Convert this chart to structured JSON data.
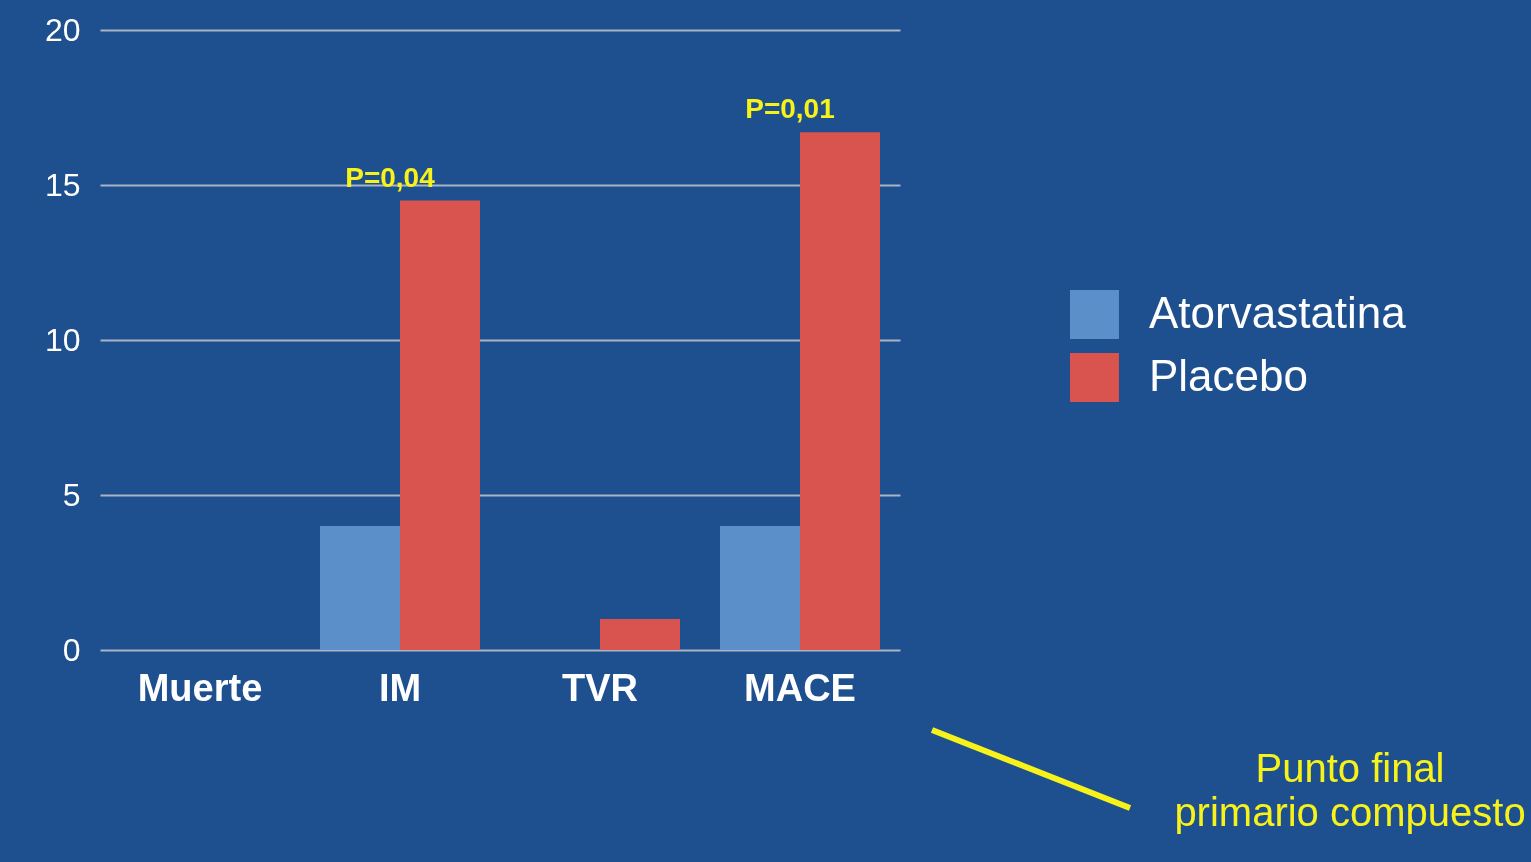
{
  "chart_data": {
    "type": "bar",
    "categories": [
      "Muerte",
      "IM",
      "TVR",
      "MACE"
    ],
    "series": [
      {
        "name": "Atorvastatina",
        "color": "#5b8fc9",
        "values": [
          0,
          4,
          0,
          4
        ]
      },
      {
        "name": "Placebo",
        "color": "#d9534f",
        "values": [
          0,
          14.5,
          1,
          16.7
        ]
      }
    ],
    "ylim": [
      0,
      20
    ],
    "yticks": [
      0,
      5,
      10,
      15,
      20
    ],
    "grid": "y",
    "legend": "right",
    "annotations": [
      {
        "text": "P=0,04",
        "x": "IM",
        "y": 14.5
      },
      {
        "text": "P=0,01",
        "x": "MACE",
        "y": 16.7
      },
      "Punto final\nprimario compuesto"
    ]
  }
}
